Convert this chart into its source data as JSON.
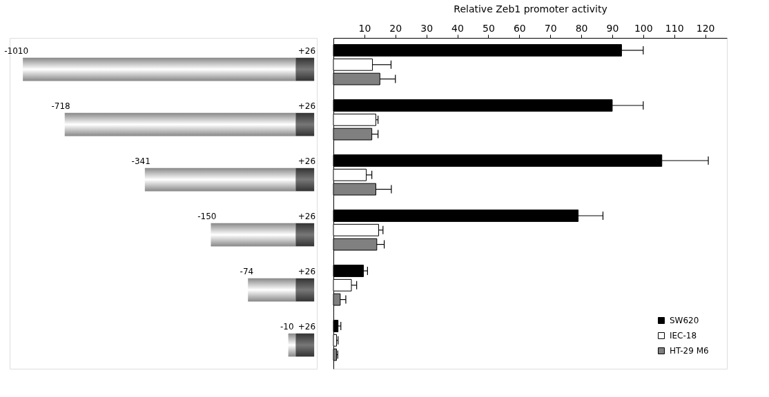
{
  "chart_data": {
    "type": "bar",
    "orientation": "horizontal",
    "xlabel": "Relative Zeb1 promoter activity",
    "categories": [
      null,
      null,
      null,
      null,
      null,
      null
    ],
    "series": [
      {
        "name": "SW620",
        "color": "#000000",
        "values": [
          93,
          90,
          106,
          79,
          9.7,
          1.5
        ],
        "errors": [
          7,
          10,
          15,
          8,
          1.3,
          0.9
        ]
      },
      {
        "name": "IEC-18",
        "color": "#ffffff",
        "values": [
          12.6,
          13.7,
          10.6,
          14.6,
          5.8,
          1
        ],
        "errors": [
          6,
          0.7,
          1.8,
          1.4,
          1.7,
          0.5
        ]
      },
      {
        "name": "HT-29 M6",
        "color": "#808080",
        "values": [
          15,
          12.4,
          13.7,
          14,
          2.2,
          1
        ],
        "errors": [
          5,
          2,
          5,
          2.4,
          1.8,
          0.4
        ]
      }
    ],
    "xlim": [
      0,
      127
    ],
    "xticks": [
      10,
      20,
      30,
      40,
      50,
      60,
      70,
      80,
      90,
      100,
      110,
      120
    ],
    "tick_labels": "x",
    "grid": false,
    "legend": "bottom right",
    "annotations": [
      "-1010",
      "+26",
      "-718",
      "+26",
      "-341",
      "+26",
      "-150",
      "+26",
      "-74",
      "+26",
      "-10",
      "+26"
    ]
  }
}
